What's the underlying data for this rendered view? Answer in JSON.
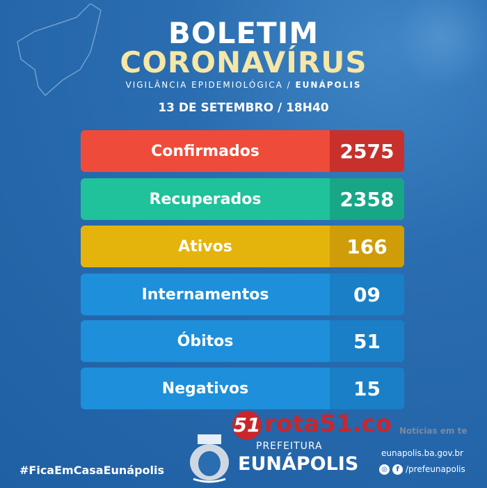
{
  "header": {
    "line1": "BOLETIM",
    "line2": "CORONAVÍRUS",
    "subtitle": "VIGILÂNCIA EPIDEMIOLÓGICA / ",
    "subtitle_city": "EUNÁPOLIS",
    "date": "13 DE SETEMBRO / 18H40"
  },
  "stats": [
    {
      "label": "Confirmados",
      "value": "2575",
      "color": "#ef4b3a",
      "value_color": "#c8302c"
    },
    {
      "label": "Recuperados",
      "value": "2358",
      "color": "#1fc29a",
      "value_color": "#17a787"
    },
    {
      "label": "Ativos",
      "value": "166",
      "color": "#e5b40c",
      "value_color": "#cf9d0a"
    },
    {
      "label": "Internamentos",
      "value": "09",
      "color": "#1d8fdb",
      "value_color": "#1a7fc6"
    },
    {
      "label": "Óbitos",
      "value": "51",
      "color": "#1d8fdb",
      "value_color": "#1a7fc6"
    },
    {
      "label": "Negativos",
      "value": "15",
      "color": "#1d8fdb",
      "value_color": "#1a7fc6"
    }
  ],
  "watermark": {
    "badge": "51",
    "text": "rota51.co",
    "tagline": "Notícias em te"
  },
  "footer": {
    "hashtag": "#FicaEmCasaEunápolis",
    "pref_label": "PREFEITURA",
    "pref_city": "EUNÁPOLIS",
    "site": "eunapolis.ba.gov.br",
    "social": "/prefeunapolis",
    "instagram": "◎",
    "facebook": "f"
  }
}
